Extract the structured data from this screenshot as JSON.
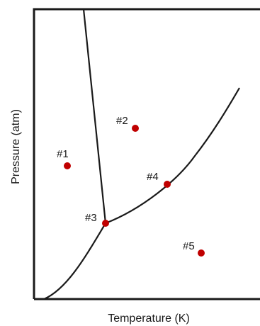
{
  "x_axis_label": "Temperature (K)",
  "y_axis_label": "Pressure (atm)",
  "point_color": "#c00000",
  "line_color": "#1a1a1a",
  "points": [
    {
      "label": "#1"
    },
    {
      "label": "#2"
    },
    {
      "label": "#3"
    },
    {
      "label": "#4"
    },
    {
      "label": "#5"
    }
  ]
}
